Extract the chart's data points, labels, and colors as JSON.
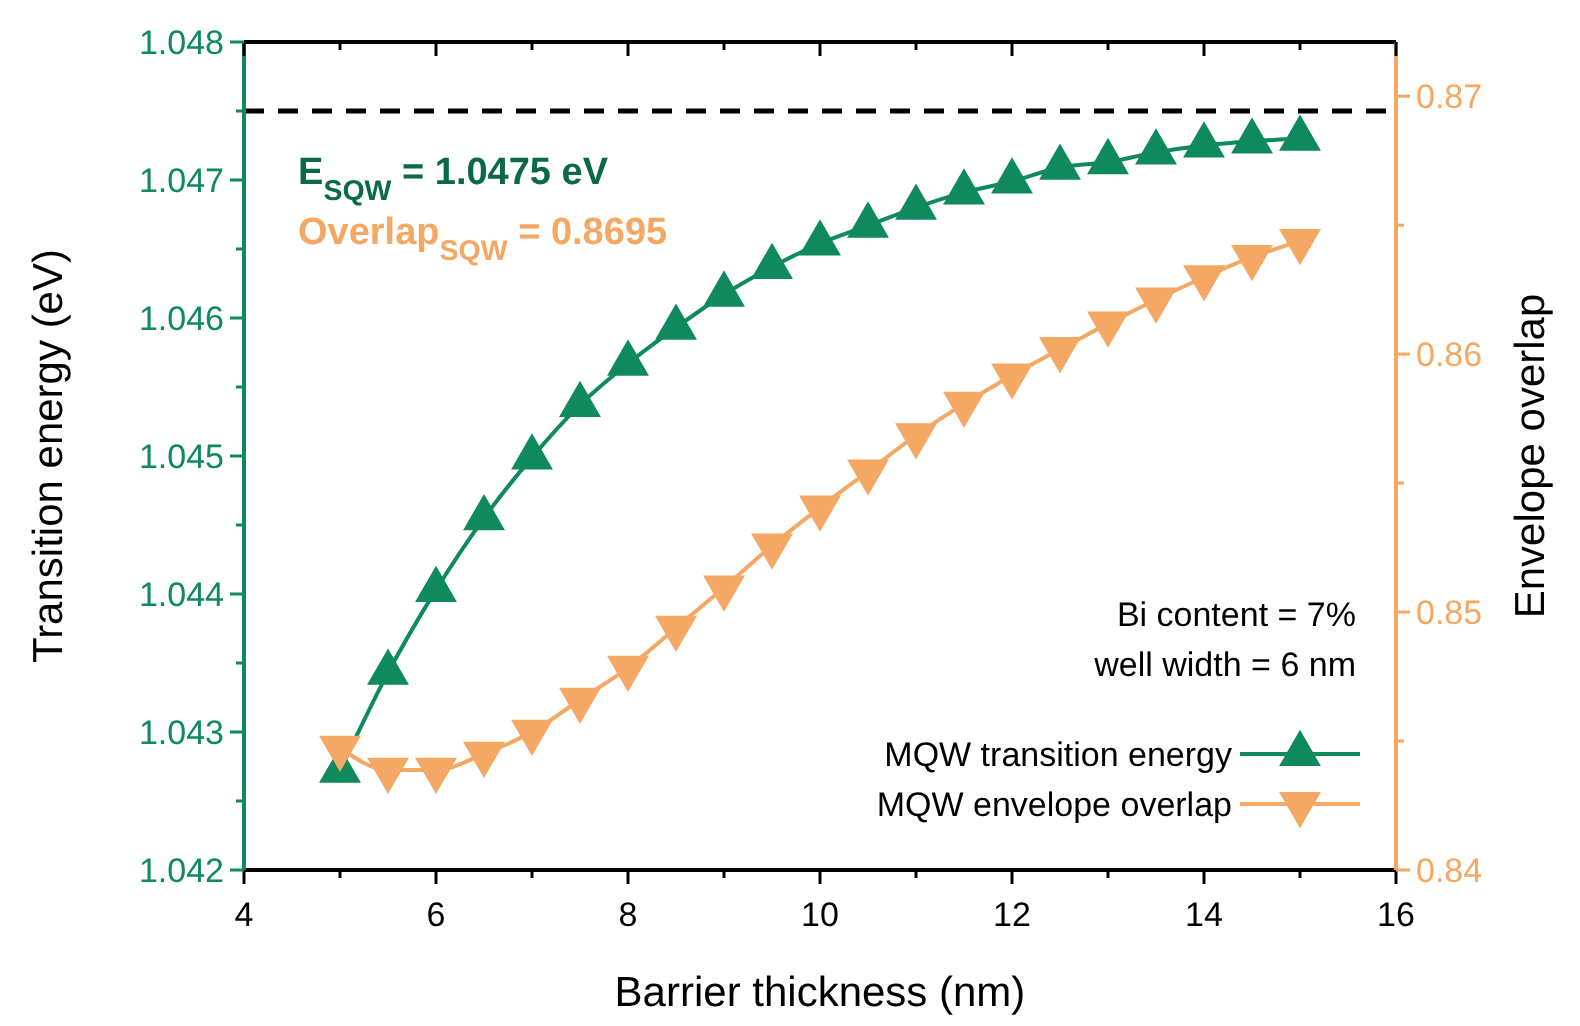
{
  "chart_data": {
    "type": "line",
    "xlabel": "Barrier thickness (nm)",
    "ylabel": "Transition energy (eV)",
    "y2label": "Envelope overlap",
    "x": [
      5,
      5.5,
      6,
      6.5,
      7,
      7.5,
      8,
      8.5,
      9,
      9.5,
      10,
      10.5,
      11,
      11.5,
      12,
      12.5,
      13,
      13.5,
      14,
      14.5,
      15
    ],
    "series": [
      {
        "name": "MQW transition energy",
        "color": "#0e8a5c",
        "marker": "triangle",
        "values": [
          1.04272,
          1.04343,
          1.04403,
          1.04455,
          1.04499,
          1.04537,
          1.04567,
          1.04593,
          1.04617,
          1.04637,
          1.04654,
          1.04667,
          1.0468,
          1.04691,
          1.04699,
          1.04709,
          1.04713,
          1.0472,
          1.04725,
          1.04728,
          1.0473
        ]
      },
      {
        "name": "MQW envelope overlap",
        "color": "#f4a864",
        "marker": "triangle-down",
        "axis": "y2",
        "values": [
          0.84474,
          0.84388,
          0.84388,
          0.8445,
          0.84536,
          0.8466,
          0.84784,
          0.84939,
          0.85095,
          0.85258,
          0.85405,
          0.85545,
          0.85685,
          0.85807,
          0.85917,
          0.86019,
          0.86118,
          0.86211,
          0.86298,
          0.86376,
          0.86438
        ]
      }
    ],
    "xlim": [
      4,
      16
    ],
    "xticks": [
      4,
      {
        "value": 5,
        "label": null
      },
      6,
      {
        "value": 7,
        "label": null
      },
      8,
      {
        "value": 9,
        "label": null
      },
      10,
      {
        "value": 11,
        "label": null
      },
      12,
      {
        "value": 13,
        "label": null
      },
      14,
      {
        "value": 15,
        "label": null
      },
      16
    ],
    "ylim": [
      1.042,
      1.048
    ],
    "yticks": [
      1.042,
      {
        "value": 1.0425,
        "label": null
      },
      1.043,
      {
        "value": 1.0435,
        "label": null
      },
      1.044,
      {
        "value": 1.0445,
        "label": null
      },
      1.045,
      {
        "value": 1.0455,
        "label": null
      },
      1.046,
      {
        "value": 1.0465,
        "label": null
      },
      1.047,
      {
        "value": 1.0475,
        "label": null
      },
      1.048
    ],
    "y2lim": [
      0.84,
      0.8721
    ],
    "y2ticks": [
      0.84,
      {
        "value": 0.845,
        "label": null
      },
      0.85,
      {
        "value": 0.855,
        "label": null
      },
      0.86,
      {
        "value": 0.865,
        "label": null
      },
      0.87
    ],
    "ref_lines": [
      {
        "axis": "y",
        "value": 1.0475,
        "color": "#000000",
        "line_style": "dashed"
      }
    ],
    "annotations": [
      "E$_{SQW}$ = 1.0475 eV",
      "Overlap$_{SQW}$ = 0.8695",
      "Bi content = 7%",
      "well width = 6 nm"
    ],
    "legend": "bottom right",
    "grid": false,
    "line_style": "solid"
  }
}
